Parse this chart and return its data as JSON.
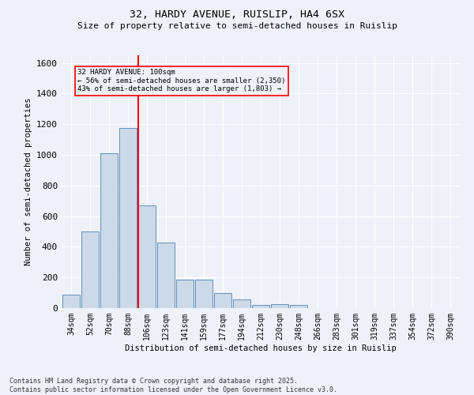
{
  "title1": "32, HARDY AVENUE, RUISLIP, HA4 6SX",
  "title2": "Size of property relative to semi-detached houses in Ruislip",
  "xlabel": "Distribution of semi-detached houses by size in Ruislip",
  "ylabel": "Number of semi-detached properties",
  "categories": [
    "34sqm",
    "52sqm",
    "70sqm",
    "88sqm",
    "106sqm",
    "123sqm",
    "141sqm",
    "159sqm",
    "177sqm",
    "194sqm",
    "212sqm",
    "230sqm",
    "248sqm",
    "266sqm",
    "283sqm",
    "301sqm",
    "319sqm",
    "337sqm",
    "354sqm",
    "372sqm",
    "390sqm"
  ],
  "values": [
    90,
    500,
    1010,
    1175,
    670,
    430,
    185,
    185,
    100,
    55,
    20,
    25,
    20,
    0,
    0,
    0,
    0,
    0,
    0,
    0,
    0
  ],
  "bar_color": "#ccd9e8",
  "bar_edge_color": "#6090bb",
  "red_line_index": 4,
  "annotation_line1": "32 HARDY AVENUE: 100sqm",
  "annotation_line2": "← 56% of semi-detached houses are smaller (2,350)",
  "annotation_line3": "43% of semi-detached houses are larger (1,803) →",
  "ylim": [
    0,
    1650
  ],
  "yticks": [
    0,
    200,
    400,
    600,
    800,
    1000,
    1200,
    1400,
    1600
  ],
  "footnote1": "Contains HM Land Registry data © Crown copyright and database right 2025.",
  "footnote2": "Contains public sector information licensed under the Open Government Licence v3.0.",
  "bg_color": "#eef2f8",
  "grid_color": "#ffffff"
}
